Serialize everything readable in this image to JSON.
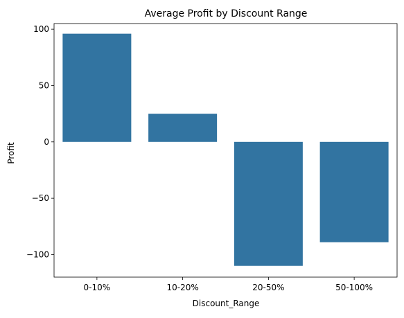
{
  "colors": {
    "bar": "#3274a1",
    "axis": "#000000",
    "background": "#ffffff"
  },
  "chart_data": {
    "type": "bar",
    "title": "Average Profit by Discount Range",
    "xlabel": "Discount_Range",
    "ylabel": "Profit",
    "categories": [
      "0-10%",
      "10-20%",
      "20-50%",
      "50-100%"
    ],
    "values": [
      96,
      25,
      -110,
      -89
    ],
    "ylim": [
      -120,
      105
    ],
    "yticks": [
      -100,
      -50,
      0,
      50,
      100
    ],
    "ytick_labels": [
      "−100",
      "−50",
      "0",
      "50",
      "100"
    ],
    "grid": false,
    "legend": false
  }
}
